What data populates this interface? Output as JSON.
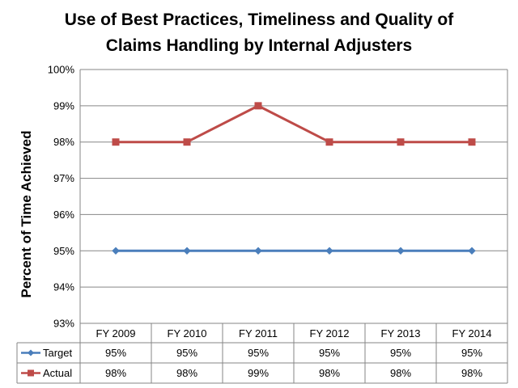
{
  "chart_data": {
    "type": "line",
    "title": [
      "Use of Best Practices, Timeliness and Quality of",
      "Claims Handling by Internal Adjusters"
    ],
    "ylabel": "Percent of Time Achieved",
    "xlabel": "",
    "categories": [
      "FY 2009",
      "FY 2010",
      "FY 2011",
      "FY 2012",
      "FY 2013",
      "FY 2014"
    ],
    "ylim": [
      93,
      100
    ],
    "yticks": [
      93,
      94,
      95,
      96,
      97,
      98,
      99,
      100
    ],
    "ytick_labels": [
      "93%",
      "94%",
      "95%",
      "96%",
      "97%",
      "98%",
      "99%",
      "100%"
    ],
    "grid": true,
    "legend": "data-table",
    "series": [
      {
        "name": "Target",
        "values": [
          95,
          95,
          95,
          95,
          95,
          95
        ],
        "labels": [
          "95%",
          "95%",
          "95%",
          "95%",
          "95%",
          "95%"
        ],
        "color": "#4a7ebb",
        "marker": "diamond"
      },
      {
        "name": "Actual",
        "values": [
          98,
          98,
          99,
          98,
          98,
          98
        ],
        "labels": [
          "98%",
          "98%",
          "99%",
          "98%",
          "98%",
          "98%"
        ],
        "color": "#be4b48",
        "marker": "square"
      }
    ]
  }
}
